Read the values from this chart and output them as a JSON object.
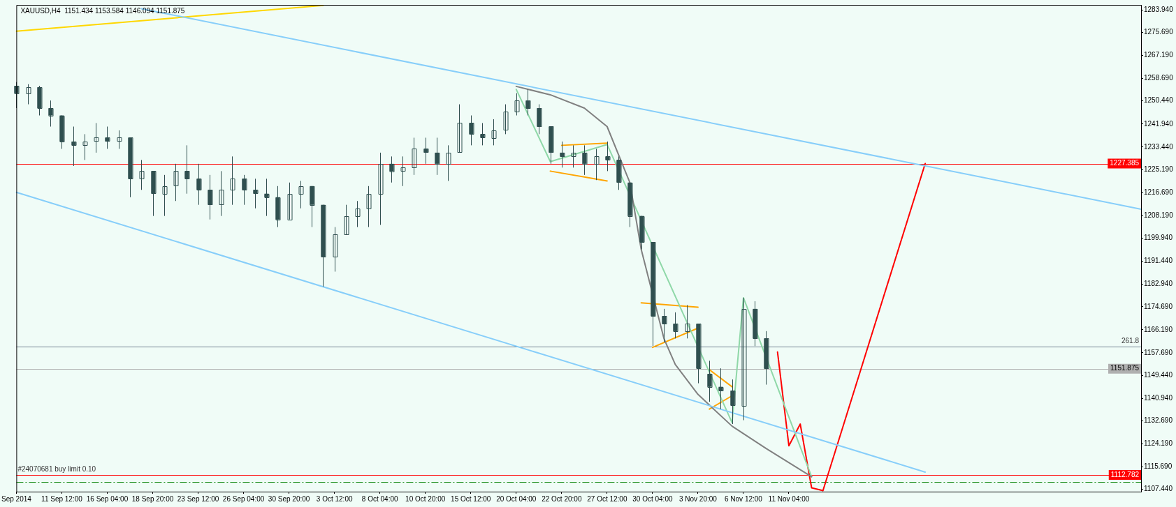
{
  "chart_data": {
    "type": "candlestick",
    "title": "XAUUSD,H4  1151.434 1153.584 1146.094 1151.875",
    "color": "#2f4f4f",
    "categories": [
      "Sep 2014",
      null,
      null,
      null,
      "11 Sep 12:00",
      null,
      null,
      null,
      "16 Sep 04:00",
      null,
      null,
      null,
      "18 Sep 20:00",
      null,
      null,
      null,
      "23 Sep 12:00",
      null,
      null,
      null,
      "26 Sep 04:00",
      null,
      null,
      null,
      "30 Sep 20:00",
      null,
      null,
      null,
      "3 Oct 12:00",
      null,
      null,
      null,
      "8 Oct 04:00",
      null,
      null,
      null,
      "10 Oct 20:00",
      null,
      null,
      null,
      "15 Oct 12:00",
      null,
      null,
      null,
      "20 Oct 04:00",
      null,
      null,
      null,
      "22 Oct 20:00",
      null,
      null,
      null,
      "27 Oct 12:00",
      null,
      null,
      null,
      "30 Oct 04:00",
      null,
      null,
      null,
      "3 Nov 20:00",
      null,
      null,
      null,
      "6 Nov 12:00",
      null,
      null,
      null,
      "11 Nov 04:00",
      null,
      null,
      null,
      null,
      null,
      null,
      null,
      null,
      null,
      null,
      null,
      null,
      null,
      null,
      null,
      null,
      null,
      null,
      null,
      null,
      null,
      null,
      null,
      null,
      null,
      null,
      null,
      null,
      null,
      null,
      null
    ],
    "ohlc": [
      [
        1256.0,
        1257.4,
        1247.8,
        1253.3
      ],
      [
        1253.3,
        1256.6,
        1249.2,
        1255.5
      ],
      [
        1255.5,
        1256.0,
        1245.1,
        1247.8
      ],
      [
        1247.8,
        1250.6,
        1241.0,
        1245.1
      ],
      [
        1245.1,
        1245.1,
        1232.8,
        1235.5
      ],
      [
        1235.5,
        1241.0,
        1226.5,
        1234.1
      ],
      [
        1234.1,
        1238.2,
        1228.7,
        1235.5
      ],
      [
        1235.5,
        1242.3,
        1231.4,
        1236.9
      ],
      [
        1236.9,
        1241.0,
        1232.8,
        1235.5
      ],
      [
        1235.5,
        1239.6,
        1232.8,
        1236.9
      ],
      [
        1236.9,
        1236.9,
        1215.0,
        1221.8
      ],
      [
        1221.8,
        1228.7,
        1217.7,
        1224.6
      ],
      [
        1224.6,
        1224.6,
        1208.1,
        1216.3
      ],
      [
        1216.3,
        1223.2,
        1208.1,
        1219.1
      ],
      [
        1219.1,
        1227.3,
        1213.6,
        1224.6
      ],
      [
        1224.6,
        1234.1,
        1216.3,
        1221.8
      ],
      [
        1221.8,
        1227.3,
        1212.2,
        1217.7
      ],
      [
        1217.7,
        1223.2,
        1206.8,
        1212.2
      ],
      [
        1212.2,
        1224.6,
        1208.1,
        1217.7
      ],
      [
        1217.7,
        1230.0,
        1212.2,
        1221.8
      ],
      [
        1221.8,
        1223.2,
        1212.2,
        1217.7
      ],
      [
        1217.7,
        1221.8,
        1210.9,
        1216.3
      ],
      [
        1216.3,
        1221.8,
        1208.1,
        1215.0
      ],
      [
        1215.0,
        1219.1,
        1204.0,
        1206.8
      ],
      [
        1206.8,
        1220.4,
        1206.8,
        1216.3
      ],
      [
        1216.3,
        1221.0,
        1210.9,
        1219.1
      ],
      [
        1219.1,
        1219.1,
        1204.0,
        1212.2
      ],
      [
        1212.2,
        1212.2,
        1182.1,
        1193.1
      ],
      [
        1193.1,
        1204.0,
        1187.6,
        1201.3
      ],
      [
        1201.3,
        1212.2,
        1201.3,
        1208.1
      ],
      [
        1208.1,
        1213.6,
        1204.0,
        1210.9
      ],
      [
        1210.9,
        1219.1,
        1204.0,
        1216.3
      ],
      [
        1216.3,
        1231.4,
        1204.8,
        1227.3
      ],
      [
        1227.3,
        1230.0,
        1220.4,
        1224.6
      ],
      [
        1224.6,
        1230.0,
        1219.1,
        1225.9
      ],
      [
        1225.9,
        1236.9,
        1223.2,
        1232.8
      ],
      [
        1232.8,
        1236.9,
        1227.3,
        1231.4
      ],
      [
        1231.4,
        1236.9,
        1223.2,
        1227.3
      ],
      [
        1227.3,
        1234.1,
        1221.0,
        1231.4
      ],
      [
        1231.4,
        1249.2,
        1231.4,
        1242.3
      ],
      [
        1242.3,
        1245.1,
        1234.1,
        1238.2
      ],
      [
        1238.2,
        1242.3,
        1234.1,
        1236.9
      ],
      [
        1236.9,
        1243.7,
        1234.1,
        1239.6
      ],
      [
        1239.6,
        1249.2,
        1238.2,
        1246.4
      ],
      [
        1246.4,
        1253.3,
        1245.1,
        1250.6
      ],
      [
        1250.6,
        1254.7,
        1245.1,
        1247.8
      ],
      [
        1247.8,
        1249.2,
        1238.2,
        1241.0
      ],
      [
        1241.0,
        1241.0,
        1227.3,
        1231.4
      ],
      [
        1231.4,
        1235.5,
        1225.9,
        1230.0
      ],
      [
        1230.0,
        1234.1,
        1225.9,
        1231.4
      ],
      [
        1231.4,
        1234.1,
        1223.2,
        1227.3
      ],
      [
        1227.3,
        1232.8,
        1221.3,
        1230.0
      ],
      [
        1230.0,
        1235.5,
        1224.6,
        1228.7
      ],
      [
        1228.7,
        1230.0,
        1217.7,
        1220.4
      ],
      [
        1220.4,
        1220.4,
        1204.0,
        1208.1
      ],
      [
        1208.1,
        1208.1,
        1195.8,
        1198.5
      ],
      [
        1198.5,
        1198.5,
        1160.2,
        1171.2
      ],
      [
        1171.2,
        1173.9,
        1161.6,
        1168.4
      ],
      [
        1168.4,
        1172.6,
        1163.0,
        1165.7
      ],
      [
        1165.7,
        1175.3,
        1163.0,
        1168.4
      ],
      [
        1168.4,
        1168.4,
        1146.5,
        1152.0
      ],
      [
        1150.0,
        1154.8,
        1139.7,
        1145.2
      ],
      [
        1145.2,
        1152.0,
        1137.0,
        1143.8
      ],
      [
        1143.8,
        1147.9,
        1131.5,
        1138.3
      ],
      [
        1138.3,
        1178.0,
        1132.9,
        1173.9
      ],
      [
        1173.9,
        1176.7,
        1160.2,
        1163.0
      ],
      [
        1163.0,
        1165.7,
        1146.0,
        1151.9
      ],
      null,
      null,
      null,
      null,
      null,
      null,
      null,
      null,
      null,
      null,
      null,
      null,
      null,
      null,
      null,
      null,
      null,
      null,
      null,
      null,
      null,
      null,
      null,
      null,
      null,
      null,
      null,
      null,
      null,
      null,
      null,
      null,
      null
    ],
    "series": [
      {
        "type": "line",
        "color": "#87cefa",
        "values": [
          null,
          null,
          null,
          null,
          null,
          null,
          null,
          null,
          null,
          null,
          null,
          1284.4,
          null,
          null,
          null,
          null,
          null,
          null,
          null,
          null,
          null,
          null,
          null,
          null,
          null,
          null,
          null,
          null,
          null,
          null,
          null,
          null,
          null,
          null,
          null,
          null,
          null,
          null,
          null,
          null,
          null,
          null,
          null,
          null,
          null,
          null,
          null,
          null,
          null,
          null,
          null,
          null,
          null,
          null,
          null,
          null,
          null,
          null,
          null,
          null,
          null,
          null,
          null,
          null,
          null,
          null,
          null,
          null,
          null,
          null,
          null,
          null,
          null,
          null,
          null,
          null,
          null,
          null,
          null,
          null,
          null,
          null,
          null,
          null,
          null,
          null,
          null,
          null,
          null,
          null,
          null,
          null,
          null,
          null,
          null,
          null,
          null,
          null,
          null,
          1210.6
        ]
      },
      {
        "type": "line",
        "color": "#87cefa",
        "values": [
          1216.8,
          null,
          null,
          null,
          null,
          null,
          null,
          null,
          null,
          null,
          null,
          null,
          null,
          null,
          null,
          null,
          null,
          null,
          null,
          null,
          null,
          null,
          null,
          null,
          null,
          null,
          null,
          null,
          null,
          null,
          null,
          null,
          null,
          null,
          null,
          null,
          null,
          null,
          null,
          null,
          null,
          null,
          null,
          null,
          null,
          null,
          null,
          null,
          null,
          null,
          null,
          null,
          null,
          null,
          null,
          null,
          null,
          null,
          null,
          null,
          null,
          null,
          null,
          null,
          null,
          null,
          null,
          null,
          null,
          null,
          null,
          null,
          null,
          null,
          null,
          null,
          null,
          null,
          null,
          null,
          1113.8,
          null,
          null,
          null,
          null,
          null,
          null,
          null,
          null,
          null,
          null,
          null,
          null,
          null,
          null,
          null,
          null,
          null,
          null,
          null
        ]
      },
      {
        "type": "line",
        "color": "#ffd700",
        "values": [
          1276.1,
          null,
          null,
          null,
          null,
          null,
          null,
          null,
          null,
          null,
          null,
          null,
          null,
          null,
          null,
          null,
          null,
          null,
          null,
          null,
          null,
          null,
          null,
          null,
          null,
          null,
          null,
          1285.6,
          null,
          null,
          null,
          null,
          null,
          null,
          null,
          null,
          null,
          null,
          null,
          null,
          null,
          null,
          null,
          null,
          null,
          null,
          null,
          null,
          null,
          null,
          null,
          null,
          null,
          null,
          null,
          null,
          null,
          null,
          null,
          null,
          null,
          null,
          null,
          null,
          null,
          null,
          null,
          null,
          null,
          null,
          null,
          null,
          null,
          null,
          null,
          null,
          null,
          null,
          null,
          null,
          null,
          null,
          null,
          null,
          null,
          null,
          null,
          null,
          null,
          null,
          null,
          null,
          null,
          null,
          null,
          null,
          null,
          null,
          null,
          null
        ]
      },
      {
        "type": "line",
        "color": "#808080",
        "values": [
          null,
          null,
          null,
          null,
          null,
          null,
          null,
          null,
          null,
          null,
          null,
          null,
          null,
          null,
          null,
          null,
          null,
          null,
          null,
          null,
          null,
          null,
          null,
          null,
          null,
          null,
          null,
          null,
          null,
          null,
          null,
          null,
          null,
          null,
          null,
          null,
          null,
          null,
          null,
          null,
          null,
          null,
          null,
          null,
          1255.8,
          null,
          null,
          1252.7,
          null,
          null,
          1247.8,
          null,
          1241.0,
          null,
          1220.4,
          1195.8,
          null,
          1163.0,
          1153.4,
          null,
          1142.4,
          null,
          null,
          1130.7,
          null,
          null,
          1122.5,
          null,
          null,
          null,
          1112.1,
          null,
          null,
          null,
          null,
          null,
          null,
          null,
          null,
          null,
          null,
          null,
          null,
          null,
          null,
          null,
          null,
          null,
          null,
          null,
          null,
          null,
          null,
          null,
          null,
          null,
          null,
          null,
          null,
          null
        ]
      },
      {
        "type": "line",
        "color": "#8fd8a8",
        "values": [
          null,
          null,
          null,
          null,
          null,
          null,
          null,
          null,
          null,
          null,
          null,
          null,
          null,
          null,
          null,
          null,
          null,
          null,
          null,
          null,
          null,
          null,
          null,
          null,
          null,
          null,
          null,
          null,
          null,
          null,
          null,
          null,
          null,
          null,
          null,
          null,
          null,
          null,
          null,
          null,
          null,
          null,
          null,
          null,
          1254.7,
          null,
          null,
          1228.1,
          null,
          null,
          null,
          null,
          1234.4,
          null,
          null,
          null,
          null,
          null,
          null,
          null,
          null,
          null,
          null,
          1132.0,
          1178.0,
          null,
          null,
          null,
          null,
          null,
          1112.1,
          null,
          null,
          null,
          null,
          null,
          null,
          null,
          null,
          null,
          null,
          null,
          null,
          null,
          null,
          null,
          null,
          null,
          null,
          null,
          null,
          null,
          null,
          null,
          null,
          null,
          null,
          null,
          null,
          null
        ]
      },
      {
        "type": "line",
        "color": "#ffa500",
        "values": [
          null,
          null,
          null,
          null,
          null,
          null,
          null,
          null,
          null,
          null,
          null,
          null,
          null,
          null,
          null,
          null,
          null,
          null,
          null,
          null,
          null,
          null,
          null,
          null,
          null,
          null,
          null,
          null,
          null,
          null,
          null,
          null,
          null,
          null,
          null,
          null,
          null,
          null,
          null,
          null,
          null,
          null,
          null,
          null,
          null,
          null,
          null,
          null,
          1234.1,
          null,
          null,
          null,
          1234.9,
          null,
          null,
          null,
          null,
          null,
          null,
          null,
          null,
          null,
          null,
          null,
          null,
          null,
          null,
          null,
          null,
          null,
          null,
          null,
          null,
          null,
          null,
          null,
          null,
          null,
          null,
          null,
          null,
          null,
          null,
          null,
          null,
          null,
          null,
          null,
          null,
          null,
          null,
          null,
          null,
          null,
          null,
          null,
          null,
          null,
          null,
          null
        ]
      },
      {
        "type": "line",
        "color": "#ffa500",
        "values": [
          null,
          null,
          null,
          null,
          null,
          null,
          null,
          null,
          null,
          null,
          null,
          null,
          null,
          null,
          null,
          null,
          null,
          null,
          null,
          null,
          null,
          null,
          null,
          null,
          null,
          null,
          null,
          null,
          null,
          null,
          null,
          null,
          null,
          null,
          null,
          null,
          null,
          null,
          null,
          null,
          null,
          null,
          null,
          null,
          null,
          null,
          null,
          1224.6,
          null,
          null,
          null,
          null,
          1221.0,
          null,
          null,
          null,
          null,
          null,
          null,
          null,
          null,
          null,
          null,
          null,
          null,
          null,
          null,
          null,
          null,
          null,
          null,
          null,
          null,
          null,
          null,
          null,
          null,
          null,
          null,
          null,
          null,
          null,
          null,
          null,
          null,
          null,
          null,
          null,
          null,
          null,
          null,
          null,
          null,
          null,
          null,
          null,
          null,
          null,
          null,
          null
        ]
      },
      {
        "type": "line",
        "color": "#ffa500",
        "values": [
          null,
          null,
          null,
          null,
          null,
          null,
          null,
          null,
          null,
          null,
          null,
          null,
          null,
          null,
          null,
          null,
          null,
          null,
          null,
          null,
          null,
          null,
          null,
          null,
          null,
          null,
          null,
          null,
          null,
          null,
          null,
          null,
          null,
          null,
          null,
          null,
          null,
          null,
          null,
          null,
          null,
          null,
          null,
          null,
          null,
          null,
          null,
          null,
          null,
          null,
          null,
          null,
          null,
          null,
          null,
          1176.1,
          null,
          null,
          null,
          null,
          1174.5,
          null,
          null,
          null,
          null,
          null,
          null,
          null,
          null,
          null,
          null,
          null,
          null,
          null,
          null,
          null,
          null,
          null,
          null,
          null,
          null,
          null,
          null,
          null,
          null,
          null,
          null,
          null,
          null,
          null,
          null,
          null,
          null,
          null,
          null,
          null,
          null,
          null,
          null,
          null
        ]
      },
      {
        "type": "line",
        "color": "#ffa500",
        "values": [
          null,
          null,
          null,
          null,
          null,
          null,
          null,
          null,
          null,
          null,
          null,
          null,
          null,
          null,
          null,
          null,
          null,
          null,
          null,
          null,
          null,
          null,
          null,
          null,
          null,
          null,
          null,
          null,
          null,
          null,
          null,
          null,
          null,
          null,
          null,
          null,
          null,
          null,
          null,
          null,
          null,
          null,
          null,
          null,
          null,
          null,
          null,
          null,
          null,
          null,
          null,
          null,
          null,
          null,
          null,
          null,
          1159.7,
          null,
          null,
          null,
          1166.8,
          null,
          null,
          null,
          null,
          null,
          null,
          null,
          null,
          null,
          null,
          null,
          null,
          null,
          null,
          null,
          null,
          null,
          null,
          null,
          null,
          null,
          null,
          null,
          null,
          null,
          null,
          null,
          null,
          null,
          null,
          null,
          null,
          null,
          null,
          null,
          null,
          null,
          null,
          null
        ]
      },
      {
        "type": "line",
        "color": "#ffa500",
        "values": [
          null,
          null,
          null,
          null,
          null,
          null,
          null,
          null,
          null,
          null,
          null,
          null,
          null,
          null,
          null,
          null,
          null,
          null,
          null,
          null,
          null,
          null,
          null,
          null,
          null,
          null,
          null,
          null,
          null,
          null,
          null,
          null,
          null,
          null,
          null,
          null,
          null,
          null,
          null,
          null,
          null,
          null,
          null,
          null,
          null,
          null,
          null,
          null,
          null,
          null,
          null,
          null,
          null,
          null,
          null,
          null,
          null,
          null,
          null,
          null,
          null,
          1151.5,
          null,
          1145.2,
          null,
          null,
          null,
          null,
          null,
          null,
          null,
          null,
          null,
          null,
          null,
          null,
          null,
          null,
          null,
          null,
          null,
          null,
          null,
          null,
          null,
          null,
          null,
          null,
          null,
          null,
          null,
          null,
          null,
          null,
          null,
          null,
          null,
          null,
          null,
          null
        ]
      },
      {
        "type": "line",
        "color": "#ffa500",
        "values": [
          null,
          null,
          null,
          null,
          null,
          null,
          null,
          null,
          null,
          null,
          null,
          null,
          null,
          null,
          null,
          null,
          null,
          null,
          null,
          null,
          null,
          null,
          null,
          null,
          null,
          null,
          null,
          null,
          null,
          null,
          null,
          null,
          null,
          null,
          null,
          null,
          null,
          null,
          null,
          null,
          null,
          null,
          null,
          null,
          null,
          null,
          null,
          null,
          null,
          null,
          null,
          null,
          null,
          null,
          null,
          null,
          null,
          null,
          null,
          null,
          null,
          1137.0,
          null,
          1141.9,
          null,
          null,
          null,
          null,
          null,
          null,
          null,
          null,
          null,
          null,
          null,
          null,
          null,
          null,
          null,
          null,
          null,
          null,
          null,
          null,
          null,
          null,
          null,
          null,
          null,
          null,
          null,
          null,
          null,
          null,
          null,
          null,
          null,
          null,
          null,
          null
        ]
      },
      {
        "type": "line",
        "color": "#ff0000",
        "values": [
          null,
          null,
          null,
          null,
          null,
          null,
          null,
          null,
          null,
          null,
          null,
          null,
          null,
          null,
          null,
          null,
          null,
          null,
          null,
          null,
          null,
          null,
          null,
          null,
          null,
          null,
          null,
          null,
          null,
          null,
          null,
          null,
          null,
          null,
          null,
          null,
          null,
          null,
          null,
          null,
          null,
          null,
          null,
          null,
          null,
          null,
          null,
          null,
          null,
          null,
          null,
          null,
          null,
          null,
          null,
          null,
          null,
          null,
          null,
          null,
          null,
          null,
          null,
          null,
          null,
          null,
          null,
          1158.0,
          1123.5,
          1131.5,
          1108.0,
          1107.0,
          null,
          null,
          null,
          null,
          null,
          null,
          null,
          null,
          1227.4,
          null,
          null,
          null,
          null,
          null,
          null,
          null,
          null,
          null,
          null,
          null,
          null,
          null,
          null,
          null,
          null,
          null,
          null,
          null
        ]
      }
    ],
    "ylim": [
      1106.6,
      1285.8
    ],
    "yticks": [
      {
        "value": 1283.94,
        "label": "1283.940"
      },
      {
        "value": 1275.69,
        "label": "1275.690"
      },
      {
        "value": 1267.19,
        "label": "1267.190"
      },
      {
        "value": 1258.69,
        "label": "1258.690"
      },
      {
        "value": 1250.44,
        "label": "1250.440"
      },
      {
        "value": 1241.94,
        "label": "1241.940"
      },
      {
        "value": 1233.44,
        "label": "1233.440"
      },
      {
        "value": 1225.19,
        "label": "1225.190"
      },
      {
        "value": 1216.69,
        "label": "1216.690"
      },
      {
        "value": 1208.19,
        "label": "1208.190"
      },
      {
        "value": 1199.94,
        "label": "1199.940"
      },
      {
        "value": 1191.44,
        "label": "1191.440"
      },
      {
        "value": 1182.94,
        "label": "1182.940"
      },
      {
        "value": 1174.69,
        "label": "1174.690"
      },
      {
        "value": 1166.19,
        "label": "1166.190"
      },
      {
        "value": 1157.69,
        "label": "1157.690"
      },
      {
        "value": 1149.44,
        "label": "1149.440"
      },
      {
        "value": 1140.94,
        "label": "1140.940"
      },
      {
        "value": 1132.69,
        "label": "1132.690"
      },
      {
        "value": 1124.19,
        "label": "1124.190"
      },
      {
        "value": 1115.69,
        "label": "1115.690"
      },
      {
        "value": 1107.44,
        "label": "1107.440"
      }
    ],
    "ref_lines": [
      {
        "axis": "y",
        "value": 1227.385,
        "label": "1227.385",
        "color": "#ff0000"
      },
      {
        "axis": "y",
        "value": 1160.0,
        "color": "#708090"
      },
      {
        "axis": "y",
        "value": 1151.875,
        "label": "1151.875",
        "color": "#b0b0b0"
      },
      {
        "axis": "y",
        "value": 1112.782,
        "label": "1112.782",
        "color": "#ff0000"
      },
      {
        "axis": "y",
        "value": 1110.1,
        "color": "#008000",
        "line_style": "dashed"
      }
    ],
    "annotations": [
      {
        "text": "#24070681 buy limit 0.10",
        "y": 1112.782
      },
      {
        "text": "261.8",
        "y": 1160.0
      }
    ]
  }
}
